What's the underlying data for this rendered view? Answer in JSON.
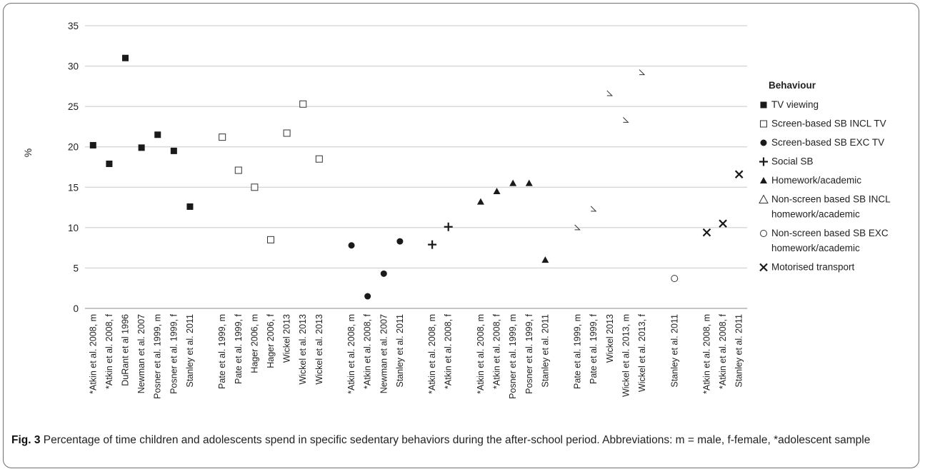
{
  "caption": {
    "label": "Fig. 3",
    "text": "Percentage of time children and adolescents spend in specific sedentary behaviors during the after-school period. Abbreviations: m = male, f-female, *adolescent sample"
  },
  "chart_data": {
    "type": "scatter",
    "title": "",
    "xlabel": "",
    "ylabel": "%",
    "ylim": [
      0,
      35
    ],
    "yticks": [
      0,
      5,
      10,
      15,
      20,
      25,
      30,
      35
    ],
    "grid": "horizontal",
    "legend_position": "right",
    "legend_title": "Behaviour",
    "categories": [
      "*Atkin et al. 2008, m",
      "*Atkin et al. 2008, f",
      "DuRant et al 1996",
      "Newman et al. 2007",
      "Posner et al. 1999, m",
      "Posner et al. 1999, f",
      "Stanley et al. 2011",
      "",
      "Pate et al. 1999, m",
      "Pate et al. 1999, f",
      "Hager 2006, m",
      "Hager 2006, f",
      "Wickel 2013",
      "Wickel et al. 2013",
      "Wickel et al. 2013",
      "",
      "*Atkin et al. 2008, m",
      "*Atkin et al. 2008, f",
      "Newman et al. 2007",
      "Stanley et al. 2011",
      "",
      "*Atkin et al. 2008, m",
      "*Atkin et al. 2008, f",
      "",
      "*Atkin et al. 2008, m",
      "*Atkin et al. 2008, f",
      "Posner et al. 1999, m",
      "Posner et al. 1999, f",
      "Stanley et al. 2011",
      "",
      "Pate et al. 1999, m",
      "Pate et al. 1999, f",
      "Wickel 2013",
      "Wickel et al. 2013, m",
      "Wickel et al. 2013, f",
      "",
      "Stanley et al. 2011",
      "",
      "*Atkin et al. 2008, m",
      "*Atkin et al. 2008, f",
      "Stanley et al. 2011"
    ],
    "series": [
      {
        "name": "TV viewing",
        "marker": "filled-square",
        "x": [
          0,
          1,
          2,
          3,
          4,
          5,
          6
        ],
        "values": [
          20.2,
          17.9,
          31.0,
          19.9,
          21.5,
          19.5,
          12.6
        ]
      },
      {
        "name": "Screen-based SB INCL TV",
        "marker": "open-square",
        "x": [
          8,
          9,
          10,
          11,
          12,
          13,
          14
        ],
        "values": [
          21.2,
          17.1,
          15.0,
          8.5,
          21.7,
          25.3,
          18.5
        ]
      },
      {
        "name": "Screen-based SB EXC TV",
        "marker": "filled-circle",
        "x": [
          16,
          17,
          18,
          19
        ],
        "values": [
          7.8,
          1.5,
          4.3,
          8.3
        ]
      },
      {
        "name": "Social SB",
        "marker": "plus",
        "x": [
          21,
          22
        ],
        "values": [
          7.9,
          10.1
        ]
      },
      {
        "name": "Homework/academic",
        "marker": "filled-triangle",
        "x": [
          24,
          25,
          26,
          27,
          28
        ],
        "values": [
          13.2,
          14.5,
          15.5,
          15.5,
          6.0
        ]
      },
      {
        "name": "Non-screen based SB INCL homework/academic",
        "marker": "open-triangle",
        "x": [
          30,
          31,
          32,
          33,
          34
        ],
        "values": [
          10.0,
          12.3,
          26.6,
          23.3,
          29.2
        ]
      },
      {
        "name": "Non-screen based SB EXC homework/academic",
        "marker": "open-circle",
        "x": [
          36
        ],
        "values": [
          3.7
        ]
      },
      {
        "name": "Motorised transport",
        "marker": "x",
        "x": [
          38,
          39,
          40
        ],
        "values": [
          9.4,
          10.5,
          16.6
        ]
      }
    ]
  }
}
